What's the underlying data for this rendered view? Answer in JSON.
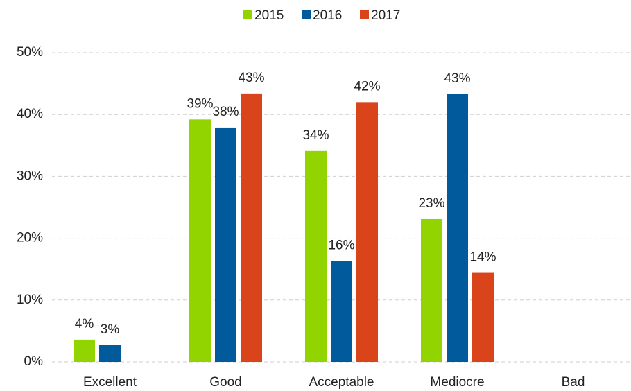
{
  "chart_data": {
    "type": "bar",
    "categories": [
      "Excellent",
      "Good",
      "Acceptable",
      "Mediocre",
      "Bad"
    ],
    "series": [
      {
        "name": "2015",
        "color": "#92d400",
        "values": [
          3.6,
          39.2,
          34.1,
          23.1,
          null
        ],
        "value_labels": [
          "4%",
          "39%",
          "34%",
          "23%",
          null
        ]
      },
      {
        "name": "2016",
        "color": "#005a9c",
        "values": [
          2.7,
          37.9,
          16.3,
          43.3,
          null
        ],
        "value_labels": [
          "3%",
          "38%",
          "16%",
          "43%",
          null
        ]
      },
      {
        "name": "2017",
        "color": "#d9441b",
        "values": [
          null,
          43.4,
          42.0,
          14.4,
          null
        ],
        "value_labels": [
          null,
          "43%",
          "42%",
          "14%",
          null
        ]
      }
    ],
    "ylim": [
      0,
      50
    ],
    "yticks": [
      {
        "value": 0,
        "label": "0%"
      },
      {
        "value": 10,
        "label": "10%"
      },
      {
        "value": 20,
        "label": "20%"
      },
      {
        "value": 30,
        "label": "30%"
      },
      {
        "value": 40,
        "label": "40%"
      },
      {
        "value": 50,
        "label": "50%"
      }
    ],
    "grid": true,
    "legend": "top"
  }
}
